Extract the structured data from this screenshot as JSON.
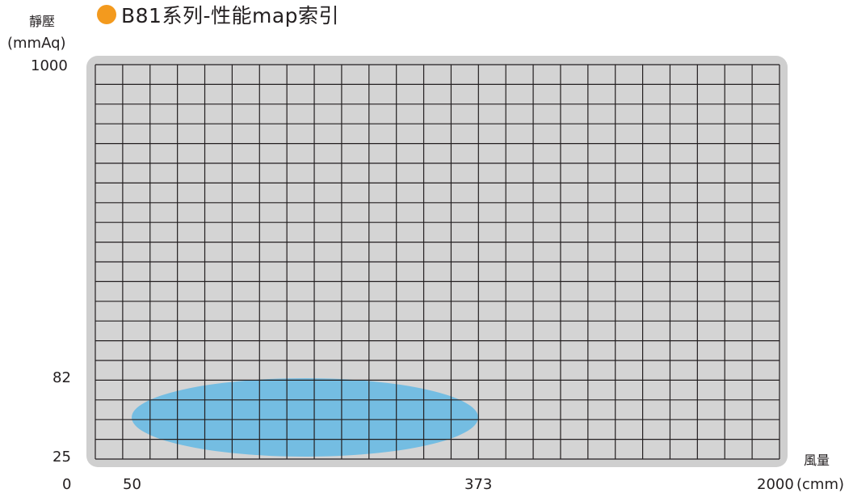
{
  "header": {
    "title": "B81系列-性能map索引",
    "bullet_color": "#f39a1e"
  },
  "chart_data": {
    "type": "area",
    "title": "B81系列-性能map索引",
    "ylabel_line1": "靜壓",
    "ylabel_line2": "(mmAq)",
    "xlabel_line1": "風量",
    "xlabel_line2": "(cmm)",
    "y_tick_labels": [
      "1000",
      "82",
      "25",
      "0"
    ],
    "x_tick_labels": [
      "50",
      "373",
      "2000"
    ],
    "grid": true,
    "grid_columns": 25,
    "grid_rows": 20,
    "operating_region": {
      "shape": "ellipse",
      "x_range": [
        50,
        373
      ],
      "y_range": [
        25,
        82
      ],
      "fill": "#74bde2"
    },
    "colors": {
      "frame": "#cfcfcf",
      "plot_background": "#d4d4d4",
      "grid_line": "#231f20"
    }
  }
}
